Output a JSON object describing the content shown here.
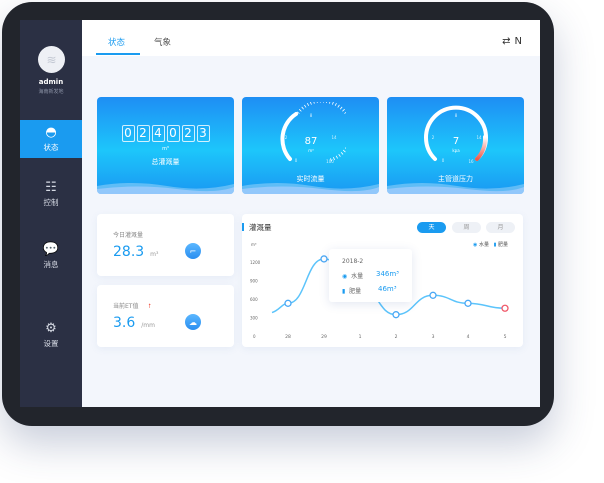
{
  "user": {
    "name": "admin",
    "subtitle": "海南新发地"
  },
  "sidebar": {
    "items": [
      {
        "label": "状态",
        "icon": "dashboard-icon"
      },
      {
        "label": "控制",
        "icon": "sliders-icon"
      },
      {
        "label": "消息",
        "icon": "message-icon"
      },
      {
        "label": "设置",
        "icon": "gear-icon"
      }
    ],
    "active": "状态"
  },
  "tabs": [
    {
      "label": "状态"
    },
    {
      "label": "气象"
    }
  ],
  "header_icons": [
    "swap-icon",
    "north-icon"
  ],
  "total": {
    "digits": [
      "0",
      "2",
      "4",
      "0",
      "2",
      "3"
    ],
    "unit": "m³",
    "label": "总灌溉量"
  },
  "flow": {
    "value": "87",
    "unit": "m³",
    "label": "实时流量",
    "ticks": [
      "0",
      "2",
      "8",
      "14",
      "100"
    ],
    "level": 0.3
  },
  "pressure": {
    "value": "7",
    "unit": "kpa",
    "label": "主管道压力",
    "ticks": [
      "0",
      "2",
      "8",
      "14",
      "16"
    ],
    "level": 0.75
  },
  "today": {
    "label": "今日灌溉量",
    "value": "28.3",
    "unit": "m³"
  },
  "et": {
    "label": "当前ET值",
    "value": "3.6",
    "unit": "/mm"
  },
  "chart": {
    "title": "灌溉量",
    "buttons": [
      "天",
      "周",
      "月"
    ],
    "active": "天",
    "legend": [
      "水量",
      "肥量"
    ],
    "tooltip": {
      "date": "2018-2",
      "water_label": "水量",
      "water": "346m³",
      "fert_label": "肥量",
      "fert": "46m³"
    }
  },
  "colors": {
    "accent": "#1a9bf0",
    "sidebar": "#2b3044",
    "highlight": "#f05a6b"
  },
  "chart_data": {
    "type": "line",
    "ylabel": "m³",
    "yticks": [
      "0",
      "300",
      "600",
      "900",
      "1200"
    ],
    "ylim": [
      0,
      1300
    ],
    "categories": [
      "28",
      "29",
      "1",
      "2",
      "3",
      "4",
      "5"
    ],
    "values": [
      530,
      1250,
      800,
      346,
      660,
      530,
      450
    ]
  }
}
